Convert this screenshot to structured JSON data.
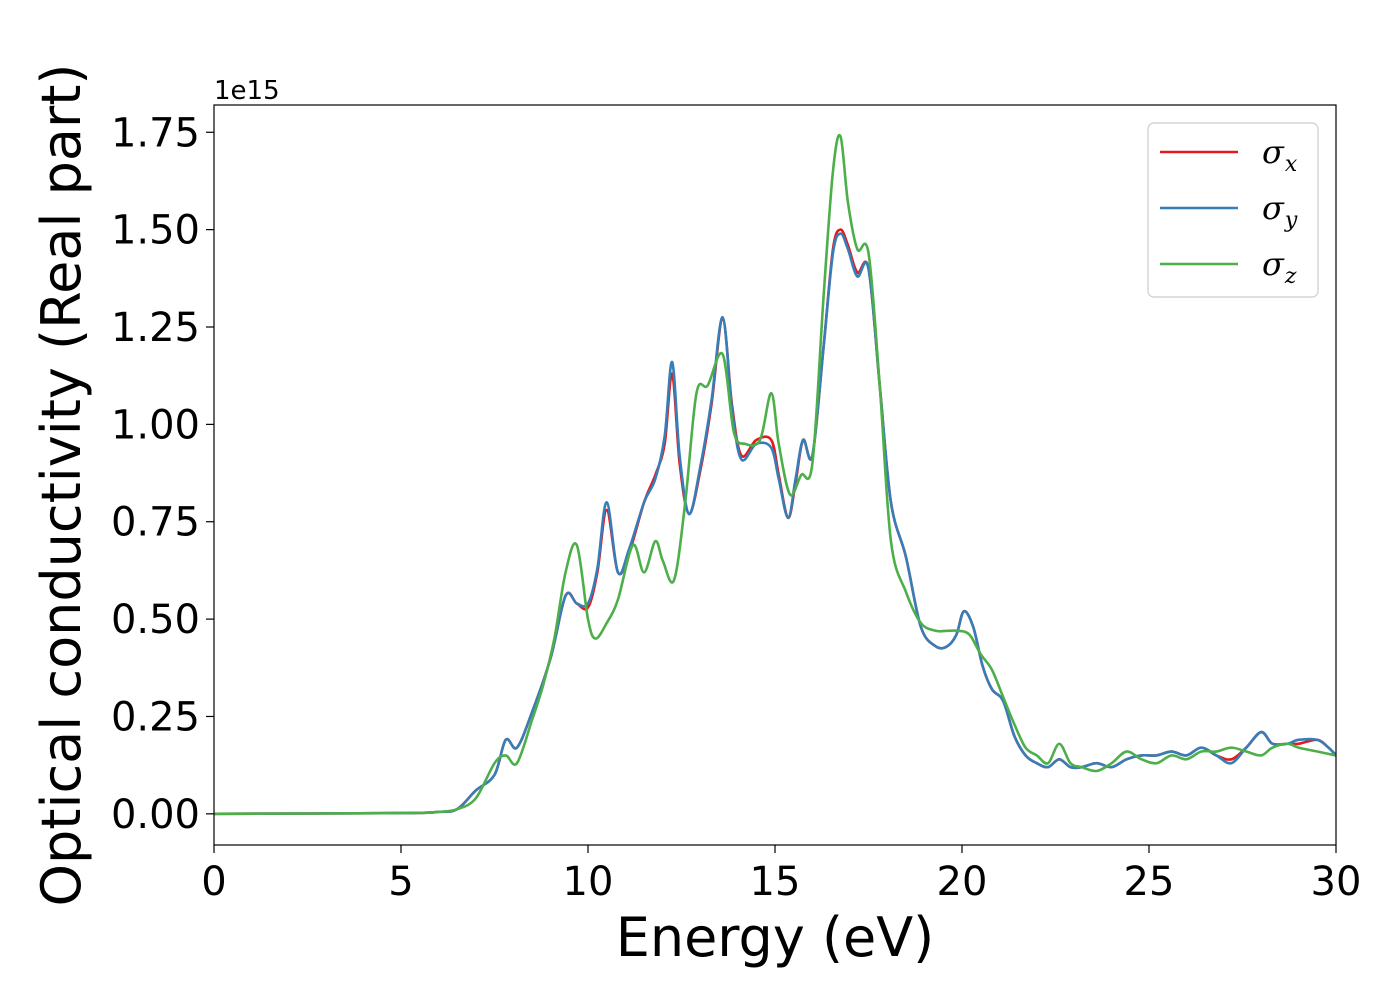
{
  "chart_data": {
    "type": "line",
    "title": "",
    "xlabel": "Energy (eV)",
    "ylabel": "Optical conductivity (Real part)",
    "y_offset_text": "1e15",
    "xlim": [
      0,
      30
    ],
    "ylim": [
      -0.08,
      1.82
    ],
    "x_ticks": [
      0,
      5,
      10,
      15,
      20,
      25,
      30
    ],
    "x_tick_labels": [
      "0",
      "5",
      "10",
      "15",
      "20",
      "25",
      "30"
    ],
    "y_ticks": [
      0,
      0.25,
      0.5,
      0.75,
      1.0,
      1.25,
      1.5,
      1.75
    ],
    "y_tick_labels": [
      "0.00",
      "0.25",
      "0.50",
      "0.75",
      "1.00",
      "1.25",
      "1.50",
      "1.75"
    ],
    "grid": false,
    "legend_position": "top-right",
    "series": [
      {
        "name": "σx",
        "legend_symbol": "σ",
        "legend_subscript": "x",
        "color": "#e41a1c",
        "x": [
          0,
          5,
          6,
          6.5,
          7,
          7.5,
          7.8,
          8.1,
          8.5,
          9,
          9.4,
          9.7,
          10,
          10.25,
          10.5,
          10.8,
          11.1,
          11.5,
          11.8,
          12.05,
          12.25,
          12.45,
          12.7,
          13,
          13.3,
          13.6,
          13.85,
          14.1,
          14.5,
          14.9,
          15.1,
          15.35,
          15.55,
          15.75,
          16.0,
          16.3,
          16.55,
          16.75,
          16.95,
          17.2,
          17.5,
          17.8,
          18.1,
          18.5,
          18.9,
          19.3,
          19.6,
          19.85,
          20.05,
          20.3,
          20.55,
          20.8,
          21.1,
          21.4,
          21.7,
          22.0,
          22.3,
          22.6,
          22.9,
          23.2,
          23.6,
          24.0,
          24.4,
          24.8,
          25.2,
          25.6,
          26.0,
          26.4,
          26.8,
          27.2,
          27.6,
          28.0,
          28.3,
          28.7,
          29.0,
          29.5,
          29.8,
          30
        ],
        "values": [
          0,
          0.002,
          0.005,
          0.012,
          0.06,
          0.1,
          0.19,
          0.17,
          0.26,
          0.4,
          0.56,
          0.54,
          0.53,
          0.62,
          0.78,
          0.62,
          0.67,
          0.8,
          0.87,
          0.95,
          1.13,
          0.9,
          0.77,
          0.88,
          1.05,
          1.27,
          1.05,
          0.92,
          0.96,
          0.96,
          0.87,
          0.76,
          0.85,
          0.96,
          0.92,
          1.2,
          1.45,
          1.5,
          1.46,
          1.39,
          1.4,
          1.1,
          0.8,
          0.66,
          0.48,
          0.43,
          0.43,
          0.46,
          0.52,
          0.48,
          0.38,
          0.32,
          0.29,
          0.2,
          0.15,
          0.13,
          0.12,
          0.14,
          0.12,
          0.12,
          0.13,
          0.12,
          0.14,
          0.15,
          0.15,
          0.16,
          0.15,
          0.17,
          0.15,
          0.14,
          0.17,
          0.21,
          0.18,
          0.18,
          0.18,
          0.19,
          0.17,
          0.15
        ]
      },
      {
        "name": "σy",
        "legend_symbol": "σ",
        "legend_subscript": "y",
        "color": "#377eb8",
        "x": [
          0,
          5,
          6,
          6.5,
          7,
          7.5,
          7.8,
          8.1,
          8.5,
          9,
          9.4,
          9.7,
          10,
          10.25,
          10.5,
          10.8,
          11.1,
          11.5,
          11.8,
          12.05,
          12.25,
          12.45,
          12.7,
          13,
          13.3,
          13.6,
          13.85,
          14.1,
          14.5,
          14.9,
          15.1,
          15.35,
          15.55,
          15.75,
          16.0,
          16.3,
          16.55,
          16.75,
          16.95,
          17.2,
          17.5,
          17.8,
          18.1,
          18.5,
          18.9,
          19.3,
          19.6,
          19.85,
          20.05,
          20.3,
          20.55,
          20.8,
          21.1,
          21.4,
          21.7,
          22.0,
          22.3,
          22.6,
          22.9,
          23.2,
          23.6,
          24.0,
          24.4,
          24.8,
          25.2,
          25.6,
          26.0,
          26.4,
          26.8,
          27.2,
          27.6,
          28.0,
          28.3,
          28.7,
          29.0,
          29.5,
          29.8,
          30
        ],
        "values": [
          0,
          0.002,
          0.005,
          0.012,
          0.06,
          0.1,
          0.19,
          0.17,
          0.26,
          0.4,
          0.56,
          0.54,
          0.54,
          0.63,
          0.8,
          0.62,
          0.68,
          0.8,
          0.86,
          0.97,
          1.16,
          0.92,
          0.77,
          0.89,
          1.06,
          1.275,
          1.04,
          0.91,
          0.95,
          0.94,
          0.86,
          0.76,
          0.86,
          0.96,
          0.92,
          1.2,
          1.44,
          1.49,
          1.45,
          1.38,
          1.4,
          1.1,
          0.8,
          0.66,
          0.48,
          0.43,
          0.43,
          0.46,
          0.52,
          0.48,
          0.38,
          0.32,
          0.29,
          0.2,
          0.15,
          0.13,
          0.12,
          0.14,
          0.12,
          0.12,
          0.13,
          0.12,
          0.14,
          0.15,
          0.15,
          0.16,
          0.15,
          0.17,
          0.15,
          0.13,
          0.17,
          0.21,
          0.18,
          0.18,
          0.19,
          0.19,
          0.17,
          0.15
        ]
      },
      {
        "name": "σz",
        "legend_symbol": "σ",
        "legend_subscript": "z",
        "color": "#4daf4a",
        "x": [
          0,
          5,
          6,
          6.5,
          7,
          7.5,
          7.8,
          8.1,
          8.5,
          8.8,
          9.1,
          9.4,
          9.7,
          10,
          10.2,
          10.5,
          10.8,
          11.2,
          11.5,
          11.8,
          12.0,
          12.3,
          12.6,
          12.9,
          13.2,
          13.6,
          13.9,
          14.2,
          14.6,
          14.9,
          15.1,
          15.4,
          15.7,
          16.0,
          16.3,
          16.55,
          16.75,
          16.95,
          17.2,
          17.5,
          17.8,
          18.1,
          18.5,
          18.9,
          19.3,
          19.6,
          19.9,
          20.2,
          20.5,
          20.8,
          21.1,
          21.4,
          21.7,
          22.0,
          22.3,
          22.6,
          22.9,
          23.2,
          23.6,
          24.0,
          24.4,
          24.8,
          25.2,
          25.6,
          26.0,
          26.4,
          26.8,
          27.2,
          27.6,
          28.0,
          28.3,
          28.7,
          29.0,
          29.5,
          30
        ],
        "values": [
          0,
          0.002,
          0.005,
          0.012,
          0.04,
          0.13,
          0.15,
          0.13,
          0.24,
          0.33,
          0.45,
          0.62,
          0.69,
          0.5,
          0.45,
          0.49,
          0.55,
          0.69,
          0.62,
          0.7,
          0.65,
          0.6,
          0.8,
          1.08,
          1.1,
          1.18,
          0.98,
          0.95,
          0.96,
          1.08,
          0.95,
          0.82,
          0.87,
          0.9,
          1.33,
          1.65,
          1.74,
          1.57,
          1.45,
          1.44,
          1.1,
          0.7,
          0.57,
          0.49,
          0.47,
          0.47,
          0.47,
          0.46,
          0.41,
          0.37,
          0.3,
          0.23,
          0.17,
          0.15,
          0.13,
          0.18,
          0.13,
          0.12,
          0.11,
          0.13,
          0.16,
          0.14,
          0.13,
          0.15,
          0.14,
          0.16,
          0.16,
          0.17,
          0.16,
          0.15,
          0.17,
          0.18,
          0.17,
          0.16,
          0.15
        ]
      }
    ]
  }
}
